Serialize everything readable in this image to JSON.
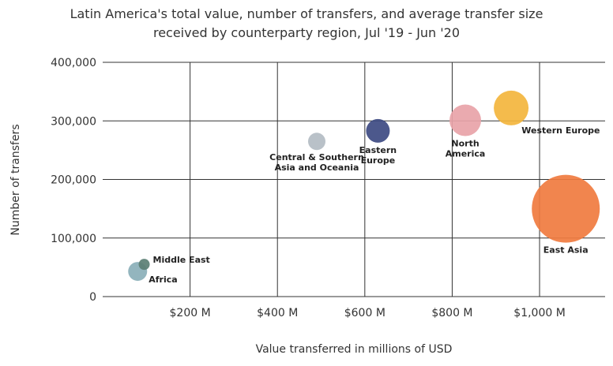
{
  "chart_data": {
    "type": "scatter",
    "title_lines": [
      "Latin America's total value, number of transfers, and average transfer size",
      "received by counterparty region, Jul '19 - Jun '20"
    ],
    "xlabel": "Value transferred in millions of USD",
    "ylabel": "Number of transfers",
    "xlim": [
      0,
      1150
    ],
    "ylim": [
      0,
      400000
    ],
    "x_ticks": [
      200,
      400,
      600,
      800,
      1000
    ],
    "x_tick_labels": [
      "$200 M",
      "$400 M",
      "$600 M",
      "$800 M",
      "$1,000 M"
    ],
    "y_ticks": [
      0,
      100000,
      200000,
      300000,
      400000
    ],
    "y_tick_labels": [
      "0",
      "100,000",
      "200,000",
      "300,000",
      "400,000"
    ],
    "grid": true,
    "points": [
      {
        "label_lines": [
          "Middle East"
        ],
        "x": 95,
        "y": 55000,
        "size": 7,
        "color": "#5b7f74",
        "label_pos": "right"
      },
      {
        "label_lines": [
          "Africa"
        ],
        "x": 80,
        "y": 43000,
        "size": 12,
        "color": "#8aafb8",
        "label_pos": "below-right"
      },
      {
        "label_lines": [
          "Central & Southern",
          "Asia and Oceania"
        ],
        "x": 490,
        "y": 265000,
        "size": 11,
        "color": "#b3bcc3",
        "label_pos": "below"
      },
      {
        "label_lines": [
          "Eastern",
          "Europe"
        ],
        "x": 630,
        "y": 283000,
        "size": 15,
        "color": "#3d4a82",
        "label_pos": "below"
      },
      {
        "label_lines": [
          "North",
          "America"
        ],
        "x": 830,
        "y": 301000,
        "size": 20,
        "color": "#e8a3a8",
        "label_pos": "below"
      },
      {
        "label_lines": [
          "Western Europe"
        ],
        "x": 935,
        "y": 322000,
        "size": 22,
        "color": "#f3b53d",
        "label_pos": "below-right"
      },
      {
        "label_lines": [
          "East Asia"
        ],
        "x": 1060,
        "y": 150000,
        "size": 43,
        "color": "#f07b3f",
        "label_pos": "below"
      }
    ]
  }
}
